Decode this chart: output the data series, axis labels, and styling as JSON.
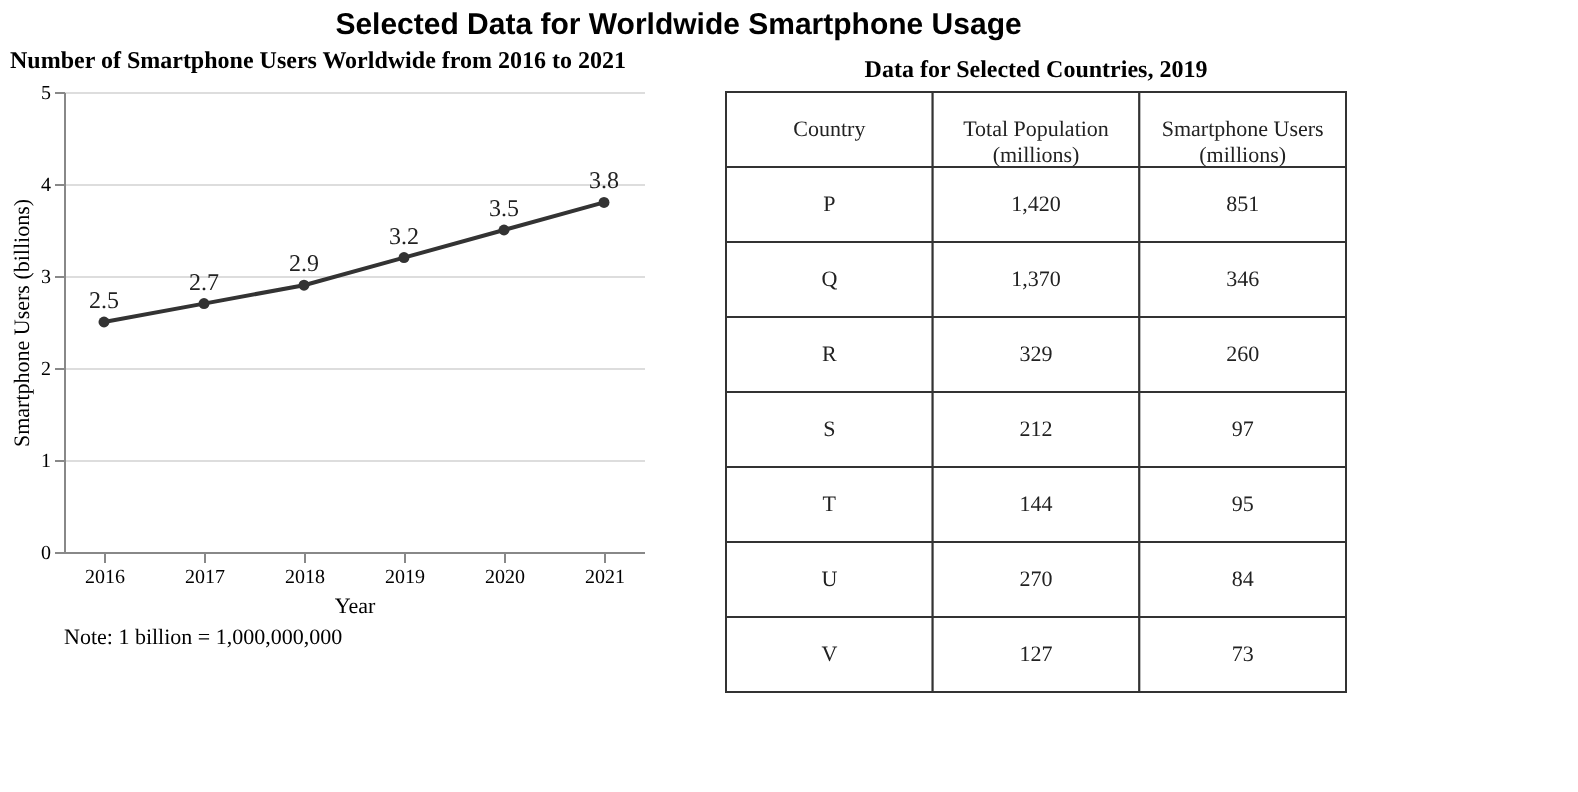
{
  "chart_data": [
    {
      "type": "line",
      "title": "Selected Data for Worldwide Smartphone Usage",
      "subtitle": "Number of Smartphone Users Worldwide from 2016 to 2021",
      "xlabel": "Year",
      "ylabel": "Smartphone Users (billions)",
      "x": [
        2016,
        2017,
        2018,
        2019,
        2020,
        2021
      ],
      "series": [
        {
          "color": "#333333",
          "values": [
            2.5,
            2.7,
            2.9,
            3.2,
            3.5,
            3.8
          ]
        }
      ],
      "xlim": [
        2015.6,
        2021.4
      ],
      "xticks": [
        2016,
        2017,
        2018,
        2019,
        2020,
        2021
      ],
      "ylim": [
        0,
        5
      ],
      "yticks": [
        0,
        1,
        2,
        3,
        4,
        5
      ],
      "grid": "y",
      "marker": "circle",
      "data_labels": true,
      "annotations": [
        "Note: 1 billion = 1,000,000,000"
      ]
    },
    {
      "type": "other",
      "title": "Data for Selected Countries, 2019",
      "categories": [
        "Country",
        "Total Population\n(millions)",
        "Smartphone Users\n(millions)"
      ],
      "y_categories": [
        "P",
        "Q",
        "R",
        "S",
        "T",
        "U",
        "V"
      ],
      "cell_labels": [
        [
          "1,420",
          "851"
        ],
        [
          "1,370",
          "346"
        ],
        [
          "329",
          "260"
        ],
        [
          "212",
          "97"
        ],
        [
          "144",
          "95"
        ],
        [
          "270",
          "84"
        ],
        [
          "127",
          "73"
        ]
      ]
    }
  ]
}
